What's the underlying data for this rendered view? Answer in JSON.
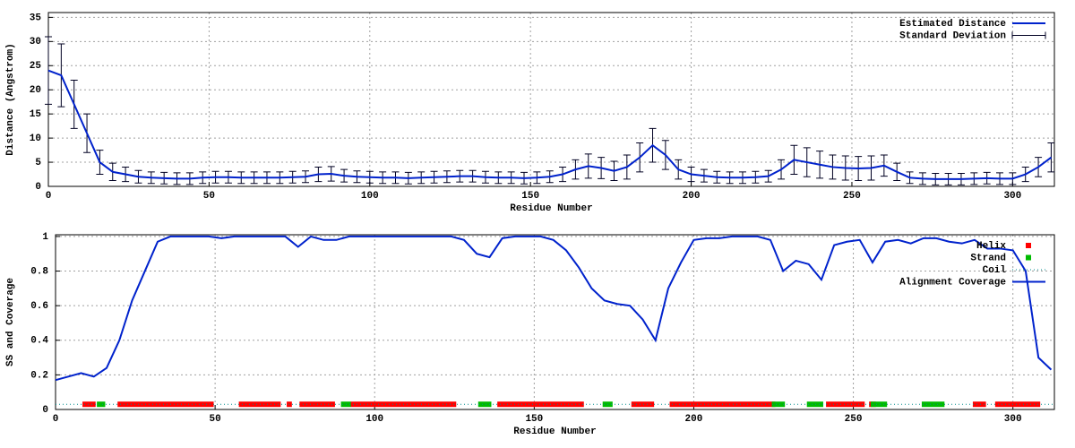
{
  "chart_data": [
    {
      "type": "line",
      "xlabel": "Residue Number",
      "ylabel": "Distance (Angstrom)",
      "xlim": [
        0,
        313
      ],
      "xticks": [
        0,
        50,
        100,
        150,
        200,
        250,
        300
      ],
      "ylim": [
        0,
        36
      ],
      "yticks": [
        0,
        5,
        10,
        15,
        20,
        25,
        30,
        35
      ],
      "grid": true,
      "legend": "top-right",
      "x": [
        0,
        4,
        8,
        12,
        16,
        20,
        24,
        28,
        32,
        36,
        40,
        44,
        48,
        52,
        56,
        60,
        64,
        68,
        72,
        76,
        80,
        84,
        88,
        92,
        96,
        100,
        104,
        108,
        112,
        116,
        120,
        124,
        128,
        132,
        136,
        140,
        144,
        148,
        152,
        156,
        160,
        164,
        168,
        172,
        176,
        180,
        184,
        188,
        192,
        196,
        200,
        204,
        208,
        212,
        216,
        220,
        224,
        228,
        232,
        236,
        240,
        244,
        248,
        252,
        256,
        260,
        264,
        268,
        272,
        276,
        280,
        284,
        288,
        292,
        296,
        300,
        304,
        308,
        312
      ],
      "series": [
        {
          "name": "Estimated Distance",
          "color": "#0022cc",
          "error_name": "Standard Deviation",
          "error_color": "#000022",
          "values": [
            24,
            23,
            17,
            11,
            5,
            3,
            2.5,
            2,
            1.8,
            1.7,
            1.6,
            1.6,
            1.8,
            1.9,
            1.9,
            1.8,
            1.8,
            1.8,
            1.8,
            1.9,
            2,
            2.5,
            2.6,
            2.2,
            2,
            1.9,
            1.8,
            1.8,
            1.7,
            1.8,
            1.9,
            2,
            2.1,
            2.1,
            1.9,
            1.8,
            1.8,
            1.7,
            1.8,
            2,
            2.5,
            3.5,
            4.2,
            3.8,
            3.2,
            4,
            6,
            8.5,
            6.5,
            3.5,
            2.5,
            2.2,
            1.9,
            1.8,
            1.8,
            1.9,
            2.1,
            3.5,
            5.5,
            5,
            4.5,
            4,
            3.8,
            3.7,
            3.8,
            4.3,
            3,
            1.8,
            1.6,
            1.5,
            1.5,
            1.5,
            1.6,
            1.7,
            1.6,
            1.6,
            2.5,
            4,
            6
          ],
          "errors": [
            7,
            6.5,
            5,
            4,
            2.5,
            1.8,
            1.5,
            1.3,
            1.2,
            1.2,
            1.2,
            1.2,
            1.2,
            1.2,
            1.2,
            1.2,
            1.2,
            1.2,
            1.2,
            1.2,
            1.2,
            1.5,
            1.5,
            1.3,
            1.2,
            1.2,
            1.2,
            1.2,
            1.2,
            1.2,
            1.2,
            1.2,
            1.2,
            1.2,
            1.2,
            1.2,
            1.2,
            1.2,
            1.2,
            1.2,
            1.5,
            2,
            2.5,
            2.2,
            2,
            2.5,
            3,
            3.5,
            3,
            2,
            1.5,
            1.3,
            1.2,
            1.2,
            1.2,
            1.2,
            1.2,
            2,
            3,
            3,
            2.8,
            2.5,
            2.5,
            2.5,
            2.5,
            2.2,
            1.8,
            1.2,
            1.2,
            1.2,
            1.2,
            1.2,
            1.2,
            1.2,
            1.2,
            1.2,
            1.5,
            2,
            3
          ]
        }
      ]
    },
    {
      "type": "line",
      "xlabel": "Residue Number",
      "ylabel": "SS and Coverage",
      "xlim": [
        0,
        313
      ],
      "xticks": [
        0,
        50,
        100,
        150,
        200,
        250,
        300
      ],
      "ylim": [
        0,
        1.01
      ],
      "yticks": [
        0,
        0.2,
        0.4,
        0.6,
        0.8,
        1
      ],
      "grid": true,
      "legend": "top-right",
      "bands": [
        {
          "name": "Helix",
          "color": "#ff0000",
          "y": 0.03,
          "segments": [
            [
              9,
              12
            ],
            [
              20,
              49
            ],
            [
              58,
              70
            ],
            [
              73,
              73.5
            ],
            [
              77,
              87
            ],
            [
              93,
              125
            ],
            [
              139,
              165
            ],
            [
              181,
              187
            ],
            [
              193,
              225
            ],
            [
              242,
              253
            ],
            [
              255.5,
              256.5
            ],
            [
              288,
              291
            ],
            [
              295,
              308
            ]
          ]
        },
        {
          "name": "Strand",
          "color": "#00bb00",
          "y": 0.03,
          "segments": [
            [
              13.5,
              15
            ],
            [
              90,
              92
            ],
            [
              133,
              136
            ],
            [
              172,
              174
            ],
            [
              225,
              228
            ],
            [
              236,
              240
            ],
            [
              256,
              260
            ],
            [
              272,
              278
            ]
          ]
        },
        {
          "name": "Coil",
          "color": "#008b8b",
          "y": 0.03,
          "segments": [
            [
              0,
              313
            ]
          ],
          "style": "dotted"
        }
      ],
      "x": [
        0,
        4,
        8,
        12,
        16,
        20,
        24,
        28,
        32,
        36,
        40,
        44,
        48,
        52,
        56,
        60,
        64,
        68,
        72,
        76,
        80,
        84,
        88,
        92,
        96,
        100,
        104,
        108,
        112,
        116,
        120,
        124,
        128,
        132,
        136,
        140,
        144,
        148,
        152,
        156,
        160,
        164,
        168,
        172,
        176,
        180,
        184,
        188,
        192,
        196,
        200,
        204,
        208,
        212,
        216,
        220,
        224,
        228,
        232,
        236,
        240,
        244,
        248,
        252,
        256,
        260,
        264,
        268,
        272,
        276,
        280,
        284,
        288,
        292,
        296,
        300,
        304,
        308,
        312
      ],
      "series": [
        {
          "name": "Alignment Coverage",
          "color": "#0022cc",
          "values": [
            0.17,
            0.19,
            0.21,
            0.19,
            0.24,
            0.4,
            0.63,
            0.8,
            0.97,
            1,
            1,
            1,
            1,
            0.99,
            1,
            1,
            1,
            1,
            1,
            0.94,
            1,
            0.98,
            0.98,
            1,
            1,
            1,
            1,
            1,
            1,
            1,
            1,
            1,
            0.98,
            0.9,
            0.88,
            0.99,
            1,
            1,
            1,
            0.98,
            0.92,
            0.82,
            0.7,
            0.63,
            0.61,
            0.6,
            0.52,
            0.4,
            0.7,
            0.85,
            0.98,
            0.99,
            0.99,
            1,
            1,
            1,
            0.98,
            0.8,
            0.86,
            0.84,
            0.75,
            0.95,
            0.97,
            0.98,
            0.85,
            0.97,
            0.98,
            0.96,
            0.99,
            0.99,
            0.97,
            0.96,
            0.98,
            0.93,
            0.93,
            0.92,
            0.8,
            0.3,
            0.23
          ]
        }
      ]
    }
  ]
}
